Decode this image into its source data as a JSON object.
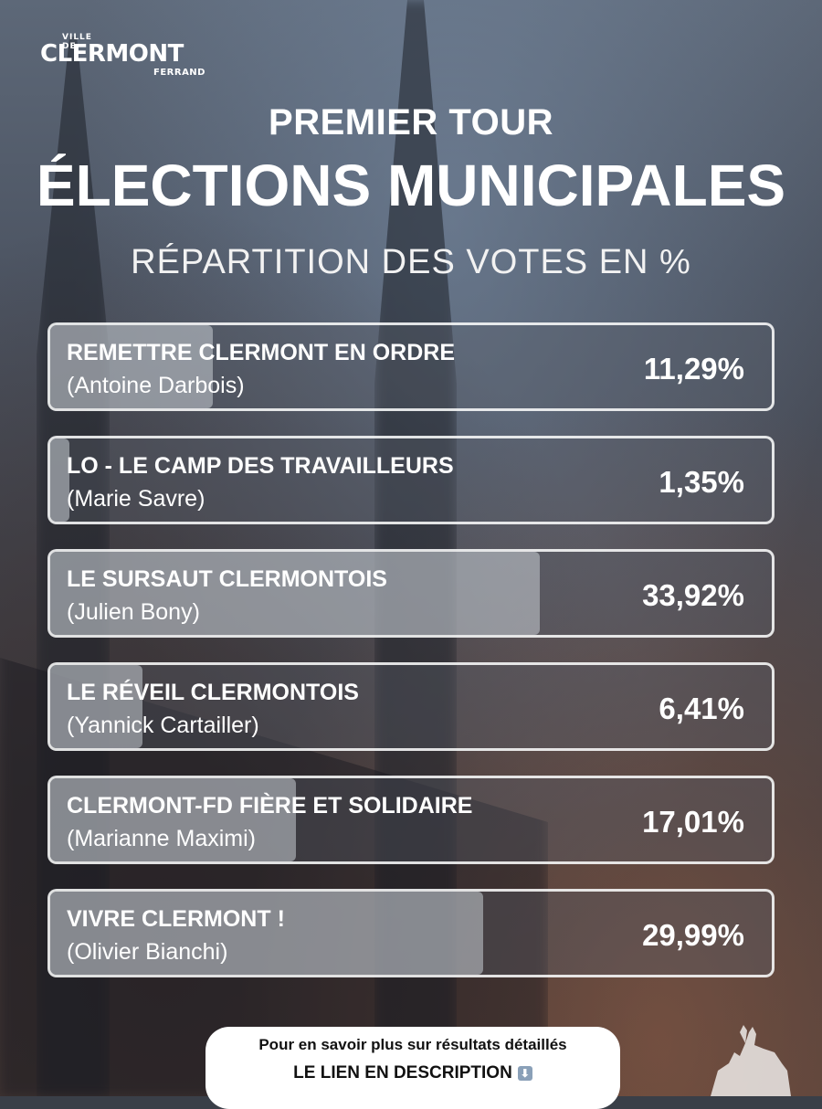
{
  "logo": {
    "top": "VILLE DE",
    "main": "CLERMONT",
    "sub": "FERRAND"
  },
  "header": {
    "line1": "PREMIER TOUR",
    "line2": "ÉLECTIONS MUNICIPALES",
    "line3": "RÉPARTITION DES VOTES EN %"
  },
  "chart_data": {
    "type": "bar",
    "title": "RÉPARTITION DES VOTES EN %",
    "orientation": "horizontal",
    "categories": [
      "REMETTRE CLERMONT EN ORDRE",
      "LO - LE CAMP DES TRAVAILLEURS",
      "LE SURSAUT CLERMONTOIS",
      "LE RÉVEIL CLERMONTOIS",
      "CLERMONT-FD FIÈRE ET SOLIDAIRE",
      "VIVRE CLERMONT !"
    ],
    "candidates": [
      "(Antoine Darbois)",
      "(Marie Savre)",
      "(Julien Bony)",
      "(Yannick Cartailler)",
      "(Marianne Maximi)",
      "(Olivier Bianchi)"
    ],
    "values": [
      11.29,
      1.35,
      33.92,
      6.41,
      17.01,
      29.99
    ],
    "labels": [
      "11,29%",
      "1,35%",
      "33,92%",
      "6,41%",
      "17,01%",
      "29,99%"
    ],
    "xlim": [
      0,
      50
    ]
  },
  "footer": {
    "line1": "Pour en savoir plus sur résultats détaillés",
    "line2": "LE LIEN EN DESCRIPTION",
    "arrow": "⬇"
  }
}
